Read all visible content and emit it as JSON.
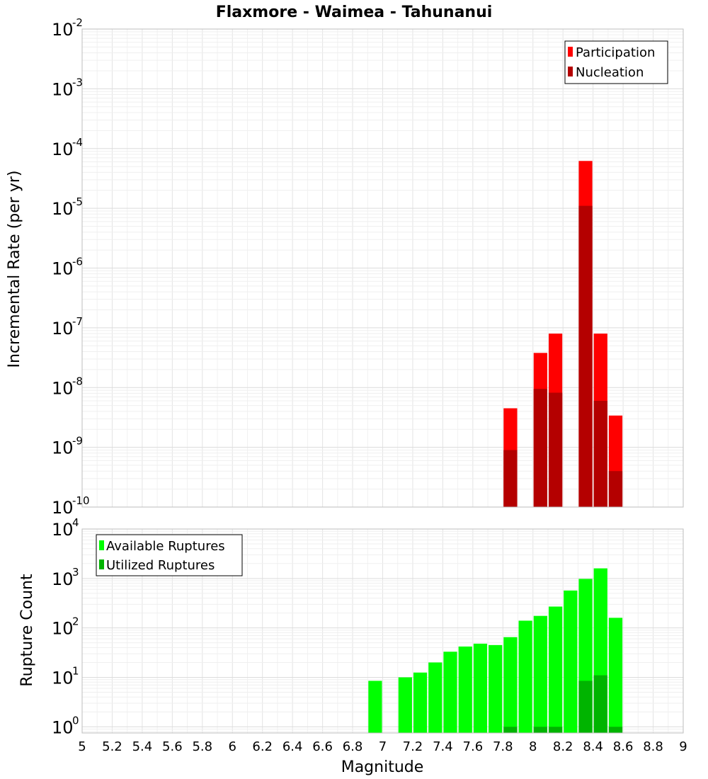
{
  "chart_data": [
    {
      "type": "bar",
      "title": "Flaxmore - Waimea - Tahunanui",
      "xlabel": "Magnitude",
      "ylabel": "Incremental Rate (per yr)",
      "ylog": true,
      "xlim": [
        5,
        9
      ],
      "ylim": [
        1e-10,
        0.01
      ],
      "bar_width": 0.1,
      "grid": true,
      "legend_position": "top-right",
      "y_ticks": [
        {
          "base": "10",
          "exp": "-10"
        },
        {
          "base": "10",
          "exp": "-9"
        },
        {
          "base": "10",
          "exp": "-8"
        },
        {
          "base": "10",
          "exp": "-7"
        },
        {
          "base": "10",
          "exp": "-6"
        },
        {
          "base": "10",
          "exp": "-5"
        },
        {
          "base": "10",
          "exp": "-4"
        },
        {
          "base": "10",
          "exp": "-3"
        },
        {
          "base": "10",
          "exp": "-2"
        }
      ],
      "series": [
        {
          "name": "Participation",
          "color": "#ff0000",
          "x": [
            7.85,
            8.05,
            8.15,
            8.35,
            8.45,
            8.55
          ],
          "values": [
            4.5e-09,
            3.8e-08,
            8e-08,
            6.2e-05,
            8e-08,
            3.4e-09
          ]
        },
        {
          "name": "Nucleation",
          "color": "#b40000",
          "x": [
            7.85,
            8.05,
            8.15,
            8.35,
            8.45,
            8.55
          ],
          "values": [
            9e-10,
            9.5e-09,
            8.2e-09,
            1.1e-05,
            6e-09,
            4e-10
          ]
        }
      ]
    },
    {
      "type": "bar",
      "xlabel": "Magnitude",
      "ylabel": "Rupture Count",
      "ylog": true,
      "xlim": [
        5,
        9
      ],
      "ylim": [
        0.75,
        10000
      ],
      "bar_width": 0.1,
      "grid": true,
      "legend_position": "top-left",
      "x_ticks": [
        "5",
        "5.2",
        "5.4",
        "5.6",
        "5.8",
        "6",
        "6.2",
        "6.4",
        "6.6",
        "6.8",
        "7",
        "7.2",
        "7.4",
        "7.6",
        "7.8",
        "8",
        "8.2",
        "8.4",
        "8.6",
        "8.8",
        "9"
      ],
      "y_ticks": [
        {
          "base": "10",
          "exp": "0"
        },
        {
          "base": "10",
          "exp": "1"
        },
        {
          "base": "10",
          "exp": "2"
        },
        {
          "base": "10",
          "exp": "3"
        },
        {
          "base": "10",
          "exp": "4"
        }
      ],
      "series": [
        {
          "name": "Available Ruptures",
          "color": "#00ff00",
          "x": [
            6.95,
            7.15,
            7.25,
            7.35,
            7.45,
            7.55,
            7.65,
            7.75,
            7.85,
            7.95,
            8.05,
            8.15,
            8.25,
            8.35,
            8.45,
            8.55
          ],
          "values": [
            8.5,
            10,
            12.5,
            20,
            33,
            42,
            48,
            45,
            65,
            140,
            175,
            270,
            570,
            980,
            1600,
            160
          ]
        },
        {
          "name": "Utilized Ruptures",
          "color": "#00b400",
          "x": [
            7.85,
            8.05,
            8.15,
            8.35,
            8.45,
            8.55
          ],
          "values": [
            1,
            1,
            1,
            8.5,
            11,
            1
          ]
        }
      ]
    }
  ]
}
